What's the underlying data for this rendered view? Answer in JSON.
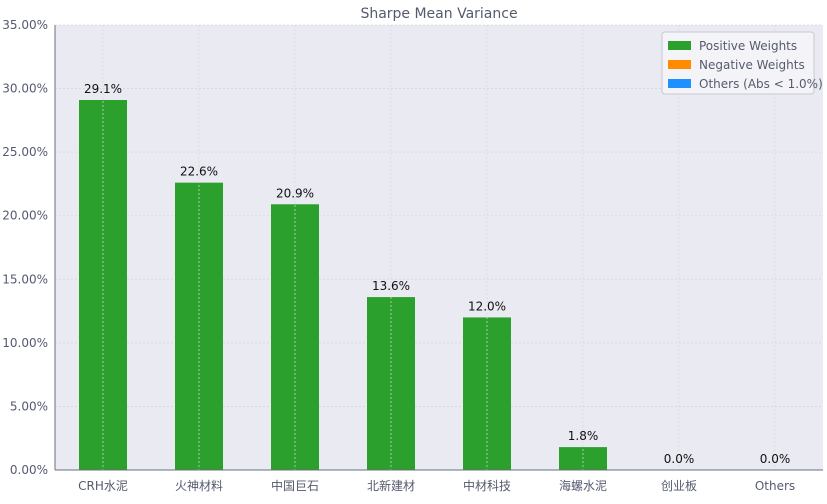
{
  "chart_data": {
    "type": "bar",
    "title": "Sharpe Mean Variance",
    "xlabel": "",
    "ylabel": "",
    "categories": [
      "CRH水泥",
      "火神材料",
      "中国巨石",
      "北新建材",
      "中材科技",
      "海螺水泥",
      "创业板",
      "Others"
    ],
    "values": [
      29.1,
      22.6,
      20.9,
      13.6,
      12.0,
      1.8,
      0.0,
      0.0
    ],
    "value_labels": [
      "29.1%",
      "22.6%",
      "20.9%",
      "13.6%",
      "12.0%",
      "1.8%",
      "0.0%",
      "0.0%"
    ],
    "ylim": [
      0,
      35
    ],
    "yticks": [
      0,
      5,
      10,
      15,
      20,
      25,
      30,
      35
    ],
    "ytick_labels": [
      "0.00%",
      "5.00%",
      "10.00%",
      "15.00%",
      "20.00%",
      "25.00%",
      "30.00%",
      "35.00%"
    ],
    "grid": true,
    "legend": {
      "placement": "top-right",
      "entries": [
        {
          "label": "Positive Weights",
          "color": "#2ca02c"
        },
        {
          "label": "Negative Weights",
          "color": "#ff8c00"
        },
        {
          "label": "Others (Abs < 1.0%)",
          "color": "#1e90ff"
        }
      ]
    },
    "bar_color": "#2ca02c",
    "background_color": "#eaeaf2"
  }
}
